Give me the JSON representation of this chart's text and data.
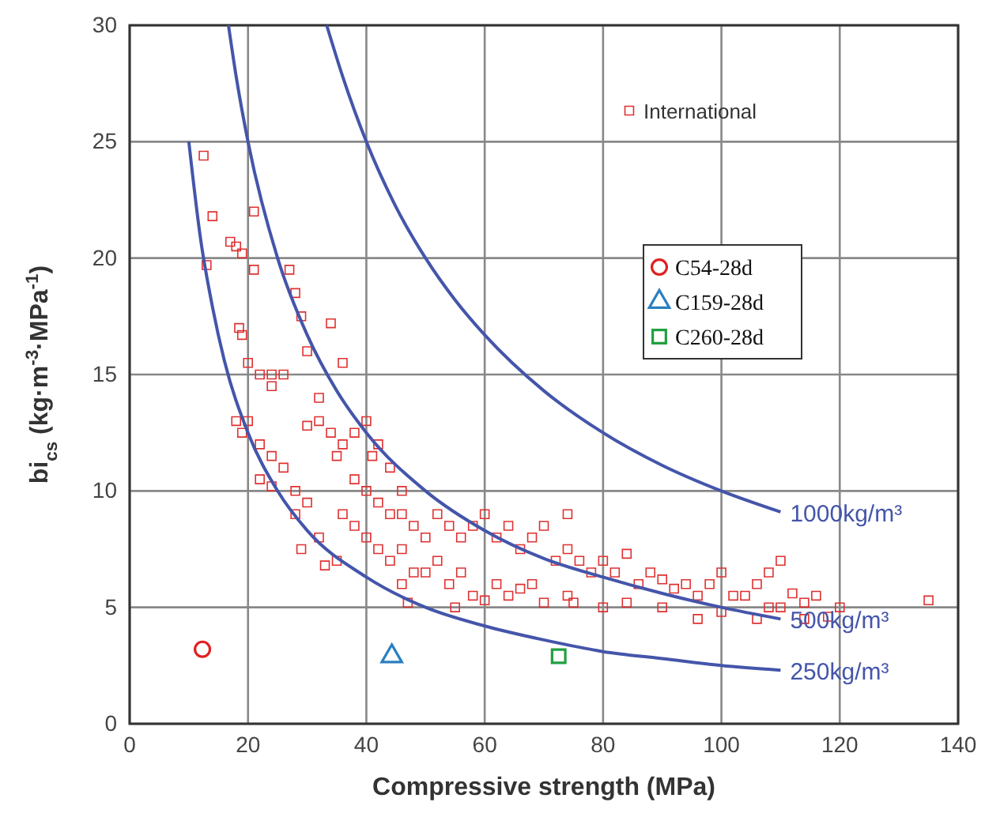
{
  "chart_data": {
    "type": "scatter",
    "xlabel": "Compressive strength (MPa)",
    "ylabel": "bi$_{cs}$ (kg·m$^{-3}$·MPa$^{-1}$)",
    "xlim": [
      0,
      140
    ],
    "xticks": [
      0,
      20,
      40,
      60,
      80,
      100,
      120,
      140
    ],
    "ylim": [
      0,
      30
    ],
    "yticks": [
      0,
      5,
      10,
      15,
      20,
      25,
      30
    ],
    "grid": true,
    "legend": "top right",
    "series": [
      {
        "name": "International",
        "color": "#e03030",
        "marker": "square",
        "x": [
          12.5,
          13,
          14,
          17,
          18,
          19,
          18.5,
          19,
          21,
          21,
          20,
          22,
          24,
          26,
          27,
          28,
          29,
          30,
          32,
          34,
          36,
          24,
          20,
          18,
          19,
          22,
          24,
          26,
          22,
          24,
          28,
          28,
          30,
          32,
          29,
          30,
          32,
          34,
          35,
          36,
          38,
          40,
          41,
          42,
          44,
          46,
          38,
          40,
          42,
          44,
          46,
          48,
          50,
          36,
          38,
          40,
          42,
          44,
          46,
          48,
          50,
          52,
          54,
          56,
          58,
          60,
          62,
          64,
          66,
          52,
          54,
          56,
          58,
          60,
          62,
          64,
          66,
          68,
          70,
          72,
          74,
          76,
          78,
          80,
          82,
          84,
          86,
          88,
          90,
          92,
          94,
          96,
          98,
          100,
          102,
          104,
          106,
          108,
          110,
          112,
          114,
          116,
          118,
          120,
          135,
          110,
          106,
          100,
          96,
          70,
          74,
          80,
          84,
          90,
          35,
          33,
          46,
          55,
          47,
          74,
          75,
          114,
          108,
          68
        ],
        "values": [
          24.4,
          19.7,
          21.8,
          20.7,
          20.5,
          20.2,
          17,
          16.7,
          22,
          19.5,
          15.5,
          15,
          15,
          15,
          19.5,
          18.5,
          17.5,
          16,
          14,
          17.2,
          15.5,
          14.5,
          13,
          13,
          12.5,
          12,
          11.5,
          11,
          10.5,
          10.2,
          10,
          9,
          9.5,
          8,
          7.5,
          12.8,
          13,
          12.5,
          11.5,
          12,
          12.5,
          13,
          11.5,
          12,
          11,
          10,
          10.5,
          10,
          9.5,
          9,
          9,
          8.5,
          8,
          9,
          8.5,
          8,
          7.5,
          7,
          7.5,
          6.5,
          6.5,
          7,
          6,
          6.5,
          5.5,
          5.3,
          6,
          5.5,
          5.8,
          9,
          8.5,
          8,
          8.5,
          9,
          8,
          8.5,
          7.5,
          8,
          8.5,
          7,
          7.5,
          7,
          6.5,
          7,
          6.5,
          7.3,
          6,
          6.5,
          6.2,
          5.8,
          6,
          5.5,
          6,
          6.5,
          5.5,
          5.5,
          6,
          5,
          5,
          5.6,
          5.2,
          5.5,
          4.6,
          5,
          5.3,
          7,
          4.5,
          4.8,
          4.5,
          5.2,
          5.5,
          5,
          5.2,
          5,
          7,
          6.8,
          6,
          5,
          5.2,
          9,
          5.2,
          4.5,
          6.5,
          6
        ]
      },
      {
        "name": "C54-28d",
        "color": "#e02020",
        "marker": "circle",
        "x": [
          12.3
        ],
        "values": [
          3.2
        ]
      },
      {
        "name": "C159-28d",
        "color": "#2a7fc0",
        "marker": "triangle",
        "x": [
          44.3
        ],
        "values": [
          2.9
        ]
      },
      {
        "name": "C260-28d",
        "color": "#20a040",
        "marker": "square",
        "x": [
          72.5
        ],
        "values": [
          2.9
        ]
      },
      {
        "name": "1000kg/m³",
        "type": "line",
        "color": "#4455aa",
        "marker": "none",
        "x": [
          33.3,
          36,
          40,
          45,
          50,
          55,
          60,
          70,
          80,
          90,
          100,
          110
        ],
        "values": [
          30,
          27.8,
          25,
          22.2,
          20,
          18.2,
          16.7,
          14.3,
          12.5,
          11.1,
          10,
          9.1
        ]
      },
      {
        "name": "500kg/m³",
        "type": "line",
        "color": "#4455aa",
        "marker": "none",
        "x": [
          16.7,
          18,
          20,
          25,
          30,
          35,
          40,
          50,
          60,
          70,
          80,
          90,
          100,
          110
        ],
        "values": [
          30,
          27.8,
          25,
          20,
          16.7,
          14.3,
          12.5,
          10,
          8.3,
          7.1,
          6.3,
          5.6,
          5,
          4.5
        ]
      },
      {
        "name": "250kg/m³",
        "type": "line",
        "color": "#4455aa",
        "marker": "none",
        "x": [
          10,
          12,
          14,
          16,
          20,
          25,
          30,
          40,
          50,
          60,
          70,
          80,
          90,
          100,
          110
        ],
        "values": [
          25,
          20.8,
          17.9,
          15.6,
          12.5,
          10,
          8.3,
          6.3,
          5,
          4.2,
          3.6,
          3.1,
          2.8,
          2.5,
          2.3
        ]
      }
    ]
  }
}
